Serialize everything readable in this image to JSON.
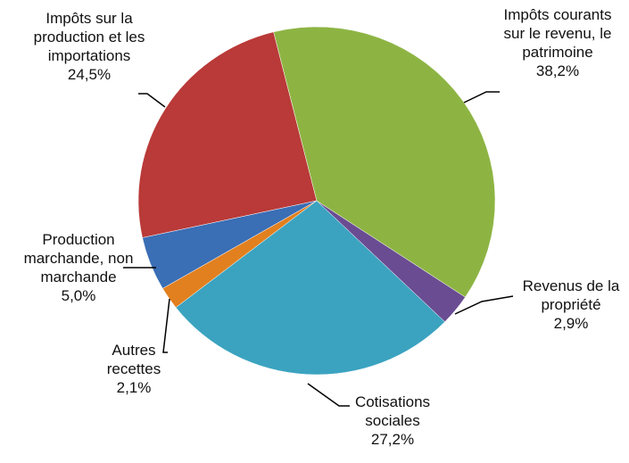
{
  "chart_data": {
    "type": "pie",
    "categories": [
      "Impôts courants sur le revenu, le patrimoine",
      "Revenus de la propriété",
      "Cotisations sociales",
      "Autres recettes",
      "Production marchande, non marchande",
      "Impôts sur la production et les importations"
    ],
    "values": [
      38.2,
      2.9,
      27.2,
      2.1,
      5.0,
      24.5
    ],
    "value_labels": [
      "38,2%",
      "2,9%",
      "27,2%",
      "2,1%",
      "5,0%",
      "24,5%"
    ],
    "colors": [
      "#8db443",
      "#6a4c93",
      "#3ba3c0",
      "#e2801f",
      "#3a6eb5",
      "#b93a38"
    ]
  }
}
